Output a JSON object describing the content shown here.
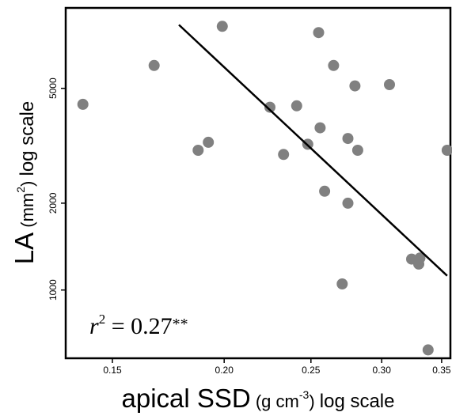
{
  "chart_data": {
    "type": "scatter",
    "title": "",
    "xlabel": {
      "main": "apical SSD",
      "unit_open": "(g cm",
      "unit_exp": "-3",
      "unit_close": ")",
      "suffix": "log scale"
    },
    "ylabel": {
      "main": "LA",
      "unit_open": "(mm",
      "unit_exp": "2",
      "unit_close": ")",
      "suffix": "log scale"
    },
    "x_scale": "log",
    "y_scale": "log",
    "xlim": [
      0.133,
      0.358
    ],
    "ylim": [
      580,
      9500
    ],
    "x_ticks": [
      0.15,
      0.2,
      0.25,
      0.3,
      0.35
    ],
    "x_tick_labels": [
      "0.15",
      "0.20",
      "0.25",
      "0.30",
      "0.35"
    ],
    "y_ticks": [
      1000,
      2000,
      5000
    ],
    "y_tick_labels": [
      "1000",
      "2000",
      "5000"
    ],
    "grid": false,
    "legend": "none",
    "point_color": "#808080",
    "line_color": "#000000",
    "points": [
      {
        "x": 0.139,
        "y": 4400
      },
      {
        "x": 0.167,
        "y": 6000
      },
      {
        "x": 0.187,
        "y": 3050
      },
      {
        "x": 0.192,
        "y": 3250
      },
      {
        "x": 0.199,
        "y": 8200
      },
      {
        "x": 0.225,
        "y": 4300
      },
      {
        "x": 0.233,
        "y": 2950
      },
      {
        "x": 0.241,
        "y": 4350
      },
      {
        "x": 0.248,
        "y": 3200
      },
      {
        "x": 0.255,
        "y": 7800
      },
      {
        "x": 0.256,
        "y": 3650
      },
      {
        "x": 0.259,
        "y": 2200
      },
      {
        "x": 0.265,
        "y": 6000
      },
      {
        "x": 0.271,
        "y": 1050
      },
      {
        "x": 0.275,
        "y": 3350
      },
      {
        "x": 0.275,
        "y": 2000
      },
      {
        "x": 0.28,
        "y": 5100
      },
      {
        "x": 0.282,
        "y": 3050
      },
      {
        "x": 0.306,
        "y": 5150
      },
      {
        "x": 0.324,
        "y": 1280
      },
      {
        "x": 0.33,
        "y": 1230
      },
      {
        "x": 0.331,
        "y": 1290
      },
      {
        "x": 0.338,
        "y": 620
      },
      {
        "x": 0.355,
        "y": 3050
      }
    ],
    "fit_line": {
      "x": [
        0.178,
        0.355
      ],
      "y": [
        8300,
        1120
      ]
    },
    "annotation": {
      "var": "r",
      "exp": "2",
      "eq": " = 0.27",
      "sig": "**"
    }
  }
}
